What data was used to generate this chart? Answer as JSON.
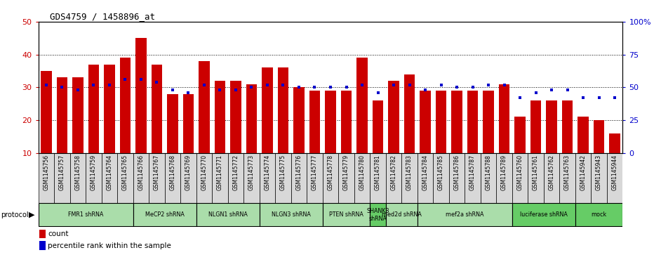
{
  "title": "GDS4759 / 1458896_at",
  "samples": [
    "GSM1145756",
    "GSM1145757",
    "GSM1145758",
    "GSM1145759",
    "GSM1145764",
    "GSM1145765",
    "GSM1145766",
    "GSM1145767",
    "GSM1145768",
    "GSM1145769",
    "GSM1145770",
    "GSM1145771",
    "GSM1145772",
    "GSM1145773",
    "GSM1145774",
    "GSM1145775",
    "GSM1145776",
    "GSM1145777",
    "GSM1145778",
    "GSM1145779",
    "GSM1145780",
    "GSM1145781",
    "GSM1145782",
    "GSM1145783",
    "GSM1145784",
    "GSM1145785",
    "GSM1145786",
    "GSM1145787",
    "GSM1145788",
    "GSM1145789",
    "GSM1145760",
    "GSM1145761",
    "GSM1145762",
    "GSM1145763",
    "GSM1145942",
    "GSM1145943",
    "GSM1145944"
  ],
  "counts": [
    35,
    33,
    33,
    37,
    37,
    39,
    45,
    37,
    28,
    28,
    38,
    32,
    32,
    31,
    36,
    36,
    30,
    29,
    29,
    29,
    39,
    26,
    32,
    34,
    29,
    29,
    29,
    29,
    29,
    31,
    21,
    26,
    26,
    26,
    21,
    20,
    16
  ],
  "percentiles_pct": [
    52,
    50,
    48,
    52,
    52,
    56,
    56,
    54,
    48,
    46,
    52,
    48,
    48,
    50,
    52,
    52,
    50,
    50,
    50,
    50,
    52,
    46,
    52,
    52,
    48,
    52,
    50,
    50,
    52,
    52,
    42,
    46,
    48,
    48,
    42,
    42,
    42
  ],
  "bar_color": "#cc0000",
  "dot_color": "#0000cc",
  "ylim_left": [
    10,
    50
  ],
  "ylim_right": [
    0,
    100
  ],
  "yticks_left": [
    10,
    20,
    30,
    40,
    50
  ],
  "yticks_right": [
    0,
    25,
    50,
    75,
    100
  ],
  "ytick_labels_right": [
    "0",
    "25",
    "50",
    "75",
    "100%"
  ],
  "plot_bg": "#ffffff",
  "label_area_bg": "#d0d0d0",
  "protocols": [
    {
      "label": "FMR1 shRNA",
      "start": 0,
      "end": 6,
      "color": "#aaddaa"
    },
    {
      "label": "MeCP2 shRNA",
      "start": 6,
      "end": 10,
      "color": "#aaddaa"
    },
    {
      "label": "NLGN1 shRNA",
      "start": 10,
      "end": 14,
      "color": "#aaddaa"
    },
    {
      "label": "NLGN3 shRNA",
      "start": 14,
      "end": 18,
      "color": "#aaddaa"
    },
    {
      "label": "PTEN shRNA",
      "start": 18,
      "end": 21,
      "color": "#aaddaa"
    },
    {
      "label": "SHANK3\nshRNA",
      "start": 21,
      "end": 22,
      "color": "#66cc66"
    },
    {
      "label": "med2d shRNA",
      "start": 22,
      "end": 24,
      "color": "#aaddaa"
    },
    {
      "label": "mef2a shRNA",
      "start": 24,
      "end": 30,
      "color": "#aaddaa"
    },
    {
      "label": "luciferase shRNA",
      "start": 30,
      "end": 34,
      "color": "#66cc66"
    },
    {
      "label": "mock",
      "start": 34,
      "end": 37,
      "color": "#66cc66"
    }
  ]
}
